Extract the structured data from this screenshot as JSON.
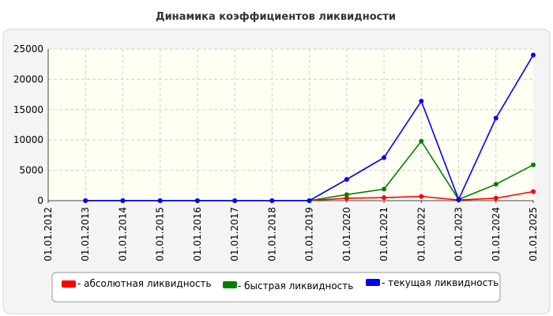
{
  "chart_data": {
    "type": "line",
    "title": "Динамика коэффициентов ликвидности",
    "xlabel": "",
    "ylabel": "",
    "categories": [
      "01.01.2012",
      "01.01.2013",
      "01.01.2014",
      "01.01.2015",
      "01.01.2016",
      "01.01.2017",
      "01.01.2018",
      "01.01.2019",
      "01.01.2020",
      "01.01.2021",
      "01.01.2022",
      "01.01.2023",
      "01.01.2024",
      "01.01.2025"
    ],
    "ylim": [
      0,
      25000
    ],
    "yticks": [
      "0",
      "5000",
      "10000",
      "15000",
      "20000",
      "25000"
    ],
    "grid": true,
    "legend_position": "bottom",
    "series": [
      {
        "name": "- абсолютная ликвидность",
        "color": "#ff0000",
        "values": [
          null,
          0,
          0,
          0,
          0,
          0,
          0,
          0,
          400,
          500,
          700,
          100,
          400,
          1500
        ]
      },
      {
        "name": "- быстрая ликвидность",
        "color": "#008000",
        "values": [
          null,
          0,
          0,
          0,
          0,
          0,
          0,
          0,
          1000,
          1900,
          9800,
          200,
          2700,
          5900
        ]
      },
      {
        "name": "- текущая ликвидность",
        "color": "#0000ff",
        "values": [
          null,
          0,
          0,
          0,
          0,
          0,
          0,
          0,
          3500,
          7100,
          16400,
          200,
          13600,
          24000
        ]
      }
    ]
  }
}
